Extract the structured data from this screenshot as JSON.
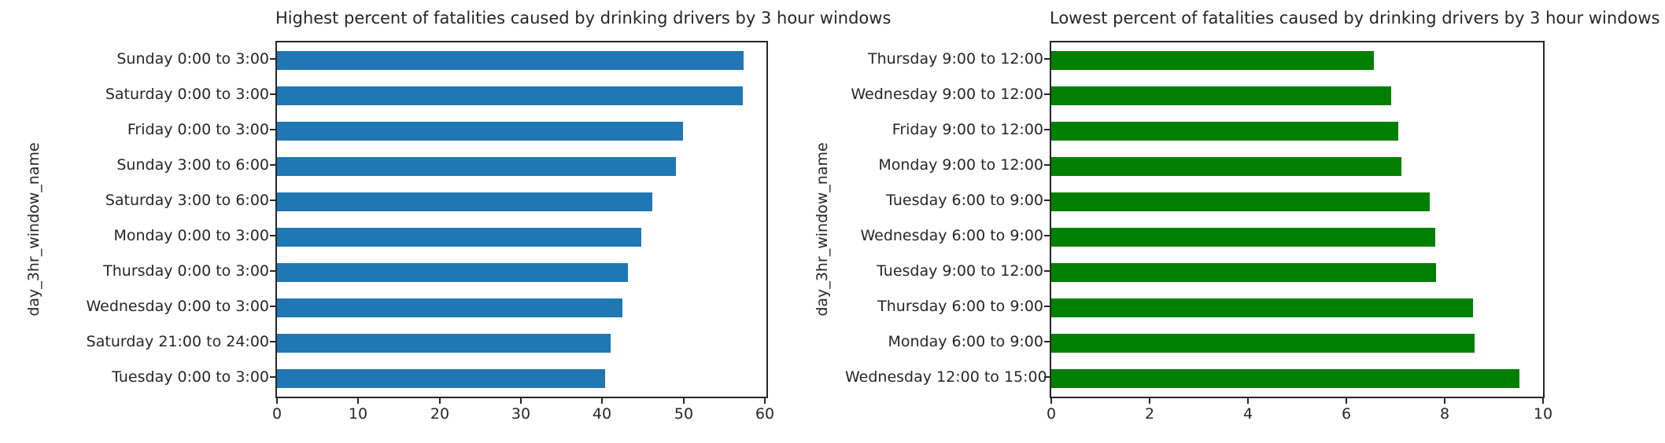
{
  "figure": {
    "background": "#ffffff",
    "text_color": "#262626",
    "spine_color": "#262626"
  },
  "chart_data": [
    {
      "type": "bar",
      "orientation": "horizontal",
      "title": "Highest percent of fatalities caused by drinking drivers by 3 hour windows",
      "xlabel": "",
      "ylabel": "day_3hr_window_name",
      "bar_color": "#1f77b4",
      "grid": false,
      "legend": null,
      "categories": [
        "Sunday 0:00 to 3:00",
        "Saturday 0:00 to 3:00",
        "Friday 0:00 to 3:00",
        "Sunday 3:00 to 6:00",
        "Saturday 3:00 to 6:00",
        "Monday 0:00 to 3:00",
        "Thursday 0:00 to 3:00",
        "Wednesday 0:00 to 3:00",
        "Saturday 21:00 to 24:00",
        "Tuesday 0:00 to 3:00"
      ],
      "values": [
        57.4,
        57.3,
        49.9,
        49.1,
        46.2,
        44.8,
        43.2,
        42.5,
        41.0,
        40.4
      ],
      "xlim": [
        0,
        60.2
      ],
      "xticks": [
        0,
        10,
        20,
        30,
        40,
        50,
        60
      ]
    },
    {
      "type": "bar",
      "orientation": "horizontal",
      "title": "Lowest percent of fatalities caused by drinking drivers by 3 hour windows",
      "xlabel": "",
      "ylabel": "day_3hr_window_name",
      "bar_color": "#008000",
      "grid": false,
      "legend": null,
      "categories": [
        "Thursday 9:00 to 12:00",
        "Wednesday 9:00 to 12:00",
        "Friday 9:00 to 12:00",
        "Monday 9:00 to 12:00",
        "Tuesday 6:00 to 9:00",
        "Wednesday 6:00 to 9:00",
        "Tuesday 9:00 to 12:00",
        "Thursday 6:00 to 9:00",
        "Monday 6:00 to 9:00",
        "Wednesday 12:00 to 15:00"
      ],
      "values": [
        6.56,
        6.92,
        7.05,
        7.12,
        7.7,
        7.8,
        7.83,
        8.57,
        8.61,
        9.52
      ],
      "xlim": [
        0,
        10
      ],
      "xticks": [
        0,
        2,
        4,
        6,
        8,
        10
      ]
    }
  ]
}
